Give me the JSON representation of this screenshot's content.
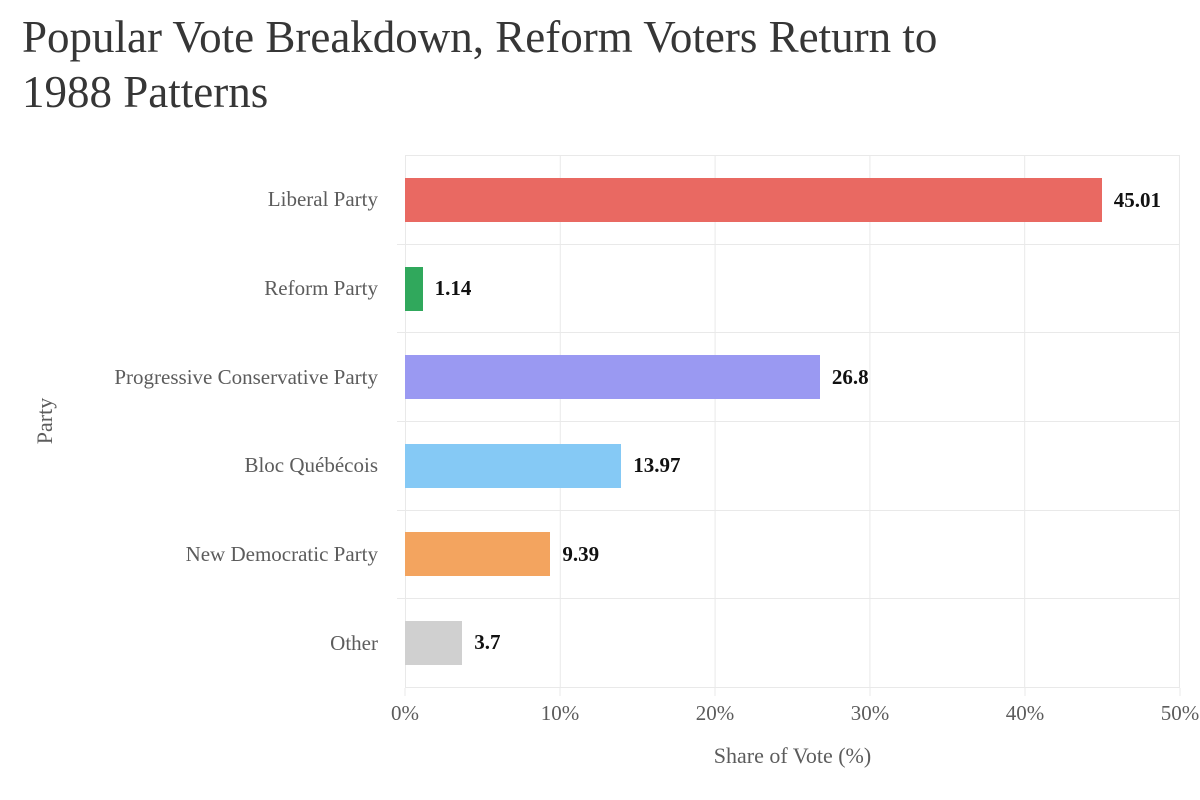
{
  "header": {
    "title_line1": "Popular Vote Breakdown, Reform Voters Return to",
    "title_line2": "1988 Patterns"
  },
  "chart_data": {
    "type": "bar",
    "orientation": "horizontal",
    "title": "Popular Vote Breakdown, Reform Voters Return to 1988 Patterns",
    "categories": [
      "Liberal Party",
      "Reform Party",
      "Progressive Conservative Party",
      "Bloc Québécois",
      "New Democratic Party",
      "Other"
    ],
    "values": [
      45.01,
      1.14,
      26.8,
      13.97,
      9.39,
      3.7
    ],
    "value_labels": [
      "45.01",
      "1.14",
      "26.8",
      "13.97",
      "9.39",
      "3.7"
    ],
    "bar_colors": [
      "#E96962",
      "#30A85C",
      "#9A99F2",
      "#85C9F5",
      "#F3A45F",
      "#D0D0D0"
    ],
    "xlabel": "Share of Vote (%)",
    "ylabel": "Party",
    "xlim": [
      0,
      50
    ],
    "x_ticks": [
      "0%",
      "10%",
      "20%",
      "30%",
      "40%",
      "50%"
    ],
    "grid": true,
    "legend_position": "none"
  },
  "colors": {
    "grid": "#e9e9e9",
    "axis_text": "#5c5c5c",
    "title_text": "#363636",
    "value_text": "#111111",
    "background": "#ffffff"
  }
}
